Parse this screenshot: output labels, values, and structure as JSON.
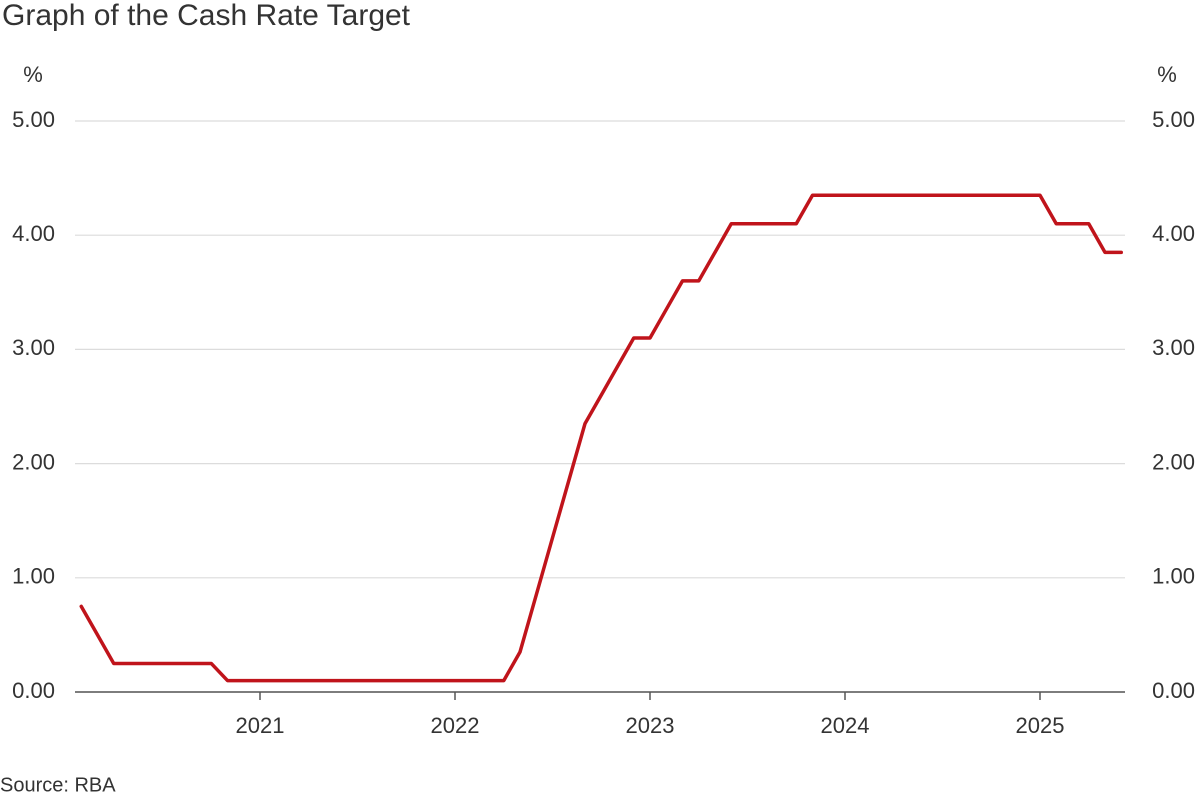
{
  "chart_data": {
    "type": "line",
    "title": "Graph of the Cash Rate Target",
    "ylabel": "%",
    "y2label": "%",
    "source": "Source: RBA",
    "categories": [
      null,
      null,
      null,
      null,
      null,
      null,
      null,
      null,
      null,
      null,
      null,
      "2021",
      null,
      null,
      null,
      null,
      null,
      null,
      null,
      null,
      null,
      null,
      null,
      "2022",
      null,
      null,
      null,
      null,
      null,
      null,
      null,
      null,
      null,
      null,
      null,
      "2023",
      null,
      null,
      null,
      null,
      null,
      null,
      null,
      null,
      null,
      null,
      null,
      "2024",
      null,
      null,
      null,
      null,
      null,
      null,
      null,
      null,
      null,
      null,
      null,
      "2025",
      null,
      null,
      null,
      null,
      null
    ],
    "values": [
      0.75,
      0.5,
      0.25,
      0.25,
      0.25,
      0.25,
      0.25,
      0.25,
      0.25,
      0.1,
      0.1,
      0.1,
      0.1,
      0.1,
      0.1,
      0.1,
      0.1,
      0.1,
      0.1,
      0.1,
      0.1,
      0.1,
      0.1,
      0.1,
      0.1,
      0.1,
      0.1,
      0.35,
      0.85,
      1.35,
      1.85,
      2.35,
      2.6,
      2.85,
      3.1,
      3.1,
      3.35,
      3.6,
      3.6,
      3.85,
      4.1,
      4.1,
      4.1,
      4.1,
      4.1,
      4.35,
      4.35,
      4.35,
      4.35,
      4.35,
      4.35,
      4.35,
      4.35,
      4.35,
      4.35,
      4.35,
      4.35,
      4.35,
      4.35,
      4.35,
      4.1,
      4.1,
      4.1,
      3.85,
      3.85
    ],
    "color": "#c0141b",
    "ylim": [
      0,
      5
    ],
    "yticks": [
      {
        "value": 0,
        "label": "0.00"
      },
      {
        "value": 1,
        "label": "1.00"
      },
      {
        "value": 2,
        "label": "2.00"
      },
      {
        "value": 3,
        "label": "3.00"
      },
      {
        "value": 4,
        "label": "4.00"
      },
      {
        "value": 5,
        "label": "5.00"
      }
    ],
    "y2lim": [
      0,
      5
    ],
    "y2ticks": [
      {
        "value": 0,
        "label": "0.00"
      },
      {
        "value": 1,
        "label": "1.00"
      },
      {
        "value": 2,
        "label": "2.00"
      },
      {
        "value": 3,
        "label": "3.00"
      },
      {
        "value": 4,
        "label": "4.00"
      },
      {
        "value": 5,
        "label": "5.00"
      }
    ],
    "grid": true
  }
}
